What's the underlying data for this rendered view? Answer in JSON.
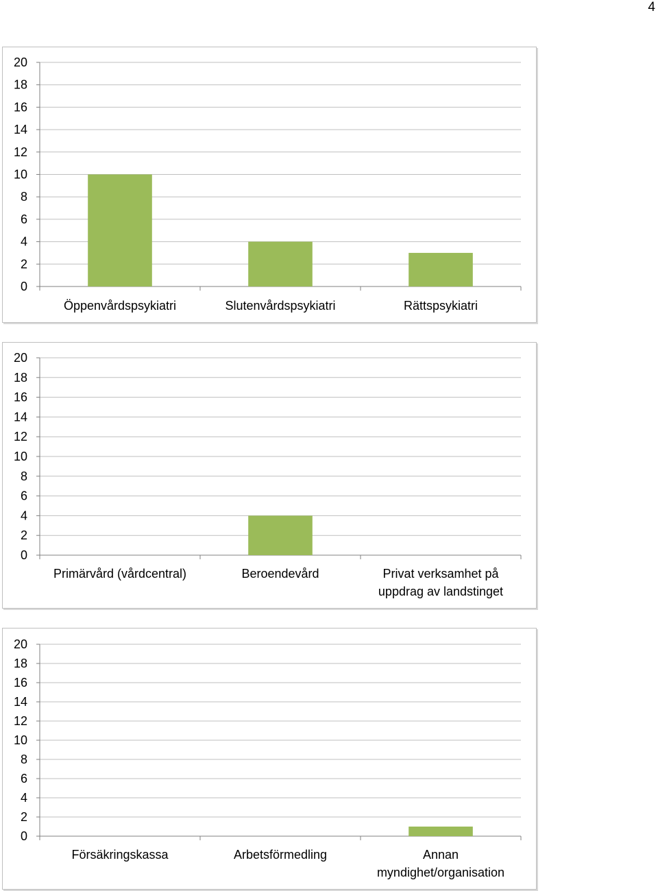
{
  "page": {
    "page_number": "4"
  },
  "chart_data": [
    {
      "type": "bar",
      "categories": [
        "Öppenvårdspsykiatri",
        "Slutenvårdspsykiatri",
        "Rättspsykiatri"
      ],
      "values": [
        10,
        4,
        3
      ],
      "ylim": [
        0,
        20
      ],
      "yticks": [
        0,
        2,
        4,
        6,
        8,
        10,
        12,
        14,
        16,
        18,
        20
      ],
      "grid": true,
      "bar_color": "#9bbb59"
    },
    {
      "type": "bar",
      "categories": [
        "Primärvård (vårdcentral)",
        "Beroendevård",
        [
          "Privat verksamhet på",
          "uppdrag av landstinget"
        ]
      ],
      "values": [
        0,
        4,
        0
      ],
      "ylim": [
        0,
        20
      ],
      "yticks": [
        0,
        2,
        4,
        6,
        8,
        10,
        12,
        14,
        16,
        18,
        20
      ],
      "grid": true,
      "bar_color": "#9bbb59"
    },
    {
      "type": "bar",
      "categories": [
        "Försäkringskassa",
        "Arbetsförmedling",
        [
          "Annan",
          "myndighet/organisation"
        ]
      ],
      "values": [
        0,
        0,
        1
      ],
      "ylim": [
        0,
        20
      ],
      "yticks": [
        0,
        2,
        4,
        6,
        8,
        10,
        12,
        14,
        16,
        18,
        20
      ],
      "grid": true,
      "bar_color": "#9bbb59"
    }
  ]
}
